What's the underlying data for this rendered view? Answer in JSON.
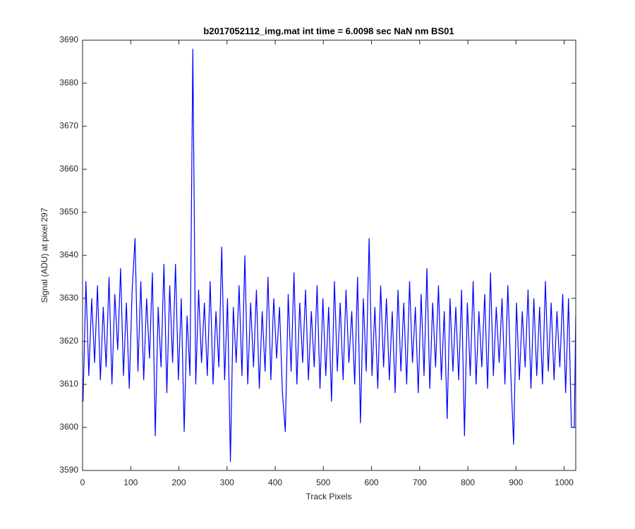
{
  "chart_data": {
    "type": "line",
    "title": "b2017052112_img.mat int time = 6.0098 sec  NaN nm BS01",
    "xlabel": "Track Pixels",
    "ylabel": "Signal (ADU) at pixel 297",
    "color": "#0000ff",
    "xlim": [
      0,
      1024
    ],
    "ylim": [
      3590,
      3690
    ],
    "xticks": [
      0,
      100,
      200,
      300,
      400,
      500,
      600,
      700,
      800,
      900,
      1000
    ],
    "yticks": [
      3590,
      3600,
      3610,
      3620,
      3630,
      3640,
      3650,
      3660,
      3670,
      3680,
      3690
    ],
    "x": [
      1,
      7,
      13,
      19,
      25,
      31,
      37,
      43,
      49,
      55,
      61,
      67,
      73,
      79,
      85,
      91,
      97,
      103,
      109,
      115,
      121,
      127,
      133,
      139,
      145,
      151,
      157,
      163,
      169,
      175,
      181,
      187,
      193,
      199,
      205,
      211,
      217,
      223,
      229,
      235,
      241,
      247,
      253,
      259,
      265,
      271,
      277,
      283,
      289,
      295,
      301,
      307,
      313,
      319,
      325,
      331,
      337,
      343,
      349,
      355,
      361,
      367,
      373,
      379,
      385,
      391,
      397,
      403,
      409,
      415,
      421,
      427,
      433,
      439,
      445,
      451,
      457,
      463,
      469,
      475,
      481,
      487,
      493,
      499,
      505,
      511,
      517,
      523,
      529,
      535,
      541,
      547,
      553,
      559,
      565,
      571,
      577,
      583,
      589,
      595,
      601,
      607,
      613,
      619,
      625,
      631,
      637,
      643,
      649,
      655,
      661,
      667,
      673,
      679,
      685,
      691,
      697,
      703,
      709,
      715,
      721,
      727,
      733,
      739,
      745,
      751,
      757,
      763,
      769,
      775,
      781,
      787,
      793,
      799,
      805,
      811,
      817,
      823,
      829,
      835,
      841,
      847,
      853,
      859,
      865,
      871,
      877,
      883,
      889,
      895,
      901,
      907,
      913,
      919,
      925,
      931,
      937,
      943,
      949,
      955,
      961,
      967,
      973,
      979,
      985,
      991,
      997,
      1003,
      1009,
      1015,
      1021,
      1024
    ],
    "values": [
      3606,
      3634,
      3612,
      3630,
      3615,
      3633,
      3611,
      3628,
      3614,
      3635,
      3610,
      3631,
      3618,
      3637,
      3612,
      3629,
      3609,
      3632,
      3644,
      3613,
      3634,
      3611,
      3630,
      3616,
      3636,
      3598,
      3628,
      3614,
      3638,
      3608,
      3633,
      3615,
      3638,
      3611,
      3630,
      3599,
      3626,
      3612,
      3688,
      3610,
      3632,
      3615,
      3629,
      3612,
      3634,
      3610,
      3627,
      3614,
      3642,
      3611,
      3630,
      3592,
      3628,
      3615,
      3633,
      3612,
      3640,
      3610,
      3629,
      3614,
      3632,
      3609,
      3627,
      3613,
      3635,
      3611,
      3630,
      3616,
      3628,
      3608,
      3599,
      3631,
      3613,
      3636,
      3610,
      3629,
      3615,
      3632,
      3611,
      3627,
      3614,
      3633,
      3609,
      3630,
      3612,
      3628,
      3606,
      3634,
      3613,
      3629,
      3611,
      3632,
      3615,
      3627,
      3610,
      3635,
      3601,
      3630,
      3613,
      3644,
      3612,
      3628,
      3609,
      3633,
      3614,
      3630,
      3611,
      3627,
      3608,
      3632,
      3613,
      3629,
      3610,
      3634,
      3615,
      3628,
      3608,
      3631,
      3612,
      3637,
      3609,
      3629,
      3614,
      3633,
      3611,
      3627,
      3602,
      3630,
      3613,
      3628,
      3611,
      3632,
      3598,
      3629,
      3612,
      3634,
      3610,
      3627,
      3614,
      3631,
      3609,
      3636,
      3612,
      3628,
      3615,
      3630,
      3610,
      3633,
      3613,
      3596,
      3629,
      3611,
      3627,
      3614,
      3632,
      3609,
      3630,
      3612,
      3628,
      3610,
      3634,
      3613,
      3629,
      3611,
      3627,
      3614,
      3631,
      3608,
      3630,
      3600,
      3600,
      3626
    ]
  }
}
